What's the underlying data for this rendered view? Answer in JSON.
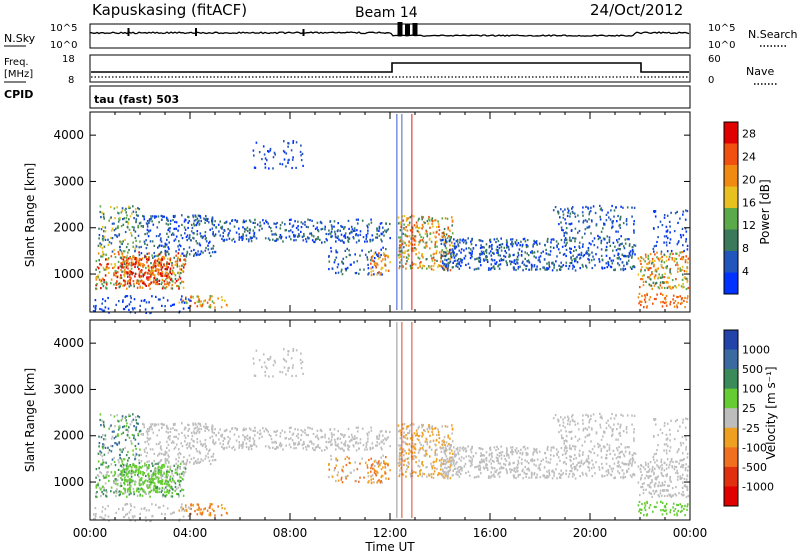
{
  "header": {
    "station": "Kapuskasing (fitACF)",
    "beam": "Beam 14",
    "date": "24/Oct/2012"
  },
  "noise_panel": {
    "left_label": "N.Sky",
    "left_ticks": [
      "10^5",
      "10^0"
    ],
    "right_label": "N.Search",
    "right_ticks": [
      "10^5",
      "10^0"
    ]
  },
  "freq_panel": {
    "left_label_1": "Freq.",
    "left_label_2": "[MHz]",
    "left_ticks": [
      "18",
      "8"
    ],
    "right_label": "Nave",
    "right_ticks": [
      "60",
      "0"
    ]
  },
  "cpid": {
    "label": "CPID",
    "value": "tau (fast) 503"
  },
  "colors": {
    "power": [
      "#0033ff",
      "#2255bb",
      "#3a7a5a",
      "#5aaa4a",
      "#e8c020",
      "#f08a10",
      "#f05010",
      "#e00000"
    ],
    "velocity": [
      "#2244aa",
      "#3a6aa0",
      "#3a8a5a",
      "#66cc33",
      "#bdbdbd",
      "#f0a020",
      "#f07020",
      "#e03010",
      "#e00000"
    ],
    "background": "#ffffff"
  },
  "chart_data": [
    {
      "type": "heatmap",
      "name": "power",
      "xlabel": "",
      "ylabel": "Slant Range [km]",
      "x_ticks": [
        "00:00",
        "04:00",
        "08:00",
        "12:00",
        "16:00",
        "20:00",
        "00:00"
      ],
      "xlim_hours": [
        0,
        24
      ],
      "y_ticks": [
        1000,
        2000,
        3000,
        4000
      ],
      "ylim": [
        180,
        4500
      ],
      "colorbar_label": "Power [dB]",
      "colorbar_ticks": [
        4,
        8,
        12,
        16,
        20,
        24,
        28
      ],
      "colorbar_range": [
        0,
        30
      ]
    },
    {
      "type": "heatmap",
      "name": "velocity",
      "xlabel": "Time UT",
      "ylabel": "Slant Range [km]",
      "x_ticks": [
        "00:00",
        "04:00",
        "08:00",
        "12:00",
        "16:00",
        "20:00",
        "00:00"
      ],
      "xlim_hours": [
        0,
        24
      ],
      "y_ticks": [
        1000,
        2000,
        3000,
        4000
      ],
      "ylim": [
        180,
        4500
      ],
      "colorbar_label": "Velocity [m s⁻¹]",
      "colorbar_ticks": [
        1000,
        500,
        100,
        25,
        -25,
        -100,
        -500,
        -1000
      ]
    }
  ]
}
